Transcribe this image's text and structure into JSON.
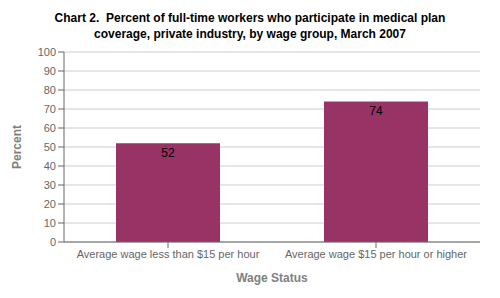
{
  "chart_data": {
    "type": "bar",
    "title": "Chart 2.  Percent of full-time workers who participate in medical plan\ncoverage, private industry, by wage group, March 2007",
    "categories": [
      "Average wage less than $15 per hour",
      "Average wage $15 per hour or higher"
    ],
    "values": [
      52,
      74
    ],
    "color": "#993366",
    "xlabel": "Wage Status",
    "ylabel": "Percent",
    "ylim": [
      0,
      100
    ],
    "yticks": [
      0,
      10,
      20,
      30,
      40,
      50,
      60,
      70,
      80,
      90,
      100
    ],
    "grid": true,
    "data_labels": true
  }
}
